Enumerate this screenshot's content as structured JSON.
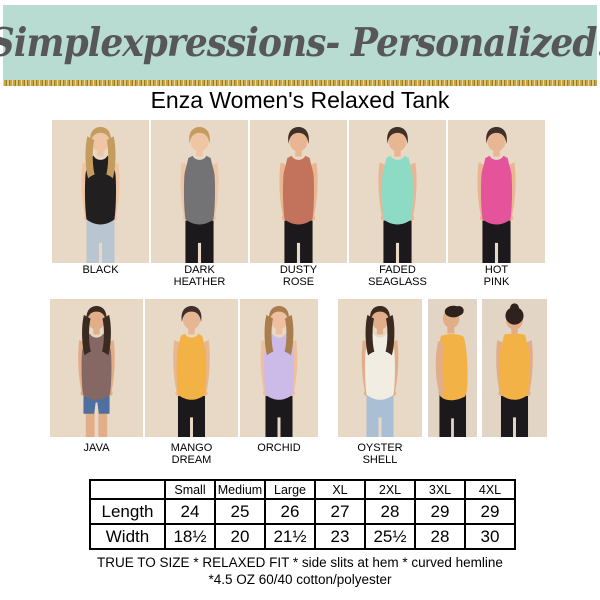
{
  "brand_bar": {
    "text": "Simplexpressions- Personalized!",
    "bg": "#b8dcd1",
    "fg": "#57575a",
    "glitter_gold": "#c9a53f"
  },
  "product_title": "Enza Women's Relaxed Tank",
  "photo_rows": [
    {
      "photos": [
        {
          "label": "BLACK",
          "tank_hex": "#221f20",
          "hair_hex": "#c49c5e",
          "skin_hex": "#f0c5a3",
          "bottom_hex": "#b9c6d1",
          "bottom_type": "pants",
          "hair_style": "long",
          "view": "front",
          "bg_hex": "#e8d9c6"
        },
        {
          "label": "DARK\nHEATHER",
          "tank_hex": "#737376",
          "hair_hex": "#c49c5e",
          "skin_hex": "#f0c5a3",
          "bottom_hex": "#1b191c",
          "bottom_type": "pants",
          "hair_style": "tied",
          "view": "front",
          "bg_hex": "#e8d9c6"
        },
        {
          "label": "DUSTY\nROSE",
          "tank_hex": "#c3735c",
          "hair_hex": "#41302a",
          "skin_hex": "#e9b693",
          "bottom_hex": "#1b191c",
          "bottom_type": "pants",
          "hair_style": "tied",
          "view": "front",
          "bg_hex": "#e8d9c6"
        },
        {
          "label": "FADED\nSEAGLASS",
          "tank_hex": "#8edbc5",
          "hair_hex": "#41302a",
          "skin_hex": "#e9b693",
          "bottom_hex": "#1b191c",
          "bottom_type": "pants",
          "hair_style": "tied",
          "view": "front",
          "bg_hex": "#e8d9c6"
        },
        {
          "label": "HOT\nPINK",
          "tank_hex": "#e5549a",
          "hair_hex": "#41302a",
          "skin_hex": "#e9b693",
          "bottom_hex": "#1b191c",
          "bottom_type": "pants",
          "hair_style": "tied",
          "view": "front",
          "bg_hex": "#e8d9c6"
        }
      ]
    },
    {
      "photos": [
        {
          "label": "JAVA",
          "tank_hex": "#856764",
          "hair_hex": "#3a2a20",
          "skin_hex": "#e2ae89",
          "bottom_hex": "#4e6f9f",
          "bottom_type": "shorts",
          "hair_style": "long",
          "view": "front",
          "bg_hex": "#e8d9c6"
        },
        {
          "label": "MANGO\nDREAM",
          "tank_hex": "#f2b246",
          "hair_hex": "#41302a",
          "skin_hex": "#e9b693",
          "bottom_hex": "#1b191c",
          "bottom_type": "pants",
          "hair_style": "tied",
          "view": "front",
          "bg_hex": "#e8d9c6"
        },
        {
          "label": "ORCHID",
          "tank_hex": "#ccbae8",
          "hair_hex": "#a87e4f",
          "skin_hex": "#eec0a0",
          "bottom_hex": "#1b191c",
          "bottom_type": "pants",
          "hair_style": "long",
          "view": "front",
          "bg_hex": "#e8d9c6"
        },
        {
          "label": "OYSTER\nSHELL",
          "tank_hex": "#f1ede2",
          "hair_hex": "#3a2a20",
          "skin_hex": "#e2ae89",
          "bottom_hex": "#aabfd4",
          "bottom_type": "pants",
          "hair_style": "long",
          "view": "front",
          "bg_hex": "#e8d9c6"
        },
        {
          "label": "",
          "tank_hex": "#f2b246",
          "hair_hex": "#2e221c",
          "skin_hex": "#e2ae89",
          "bottom_hex": "#1b191c",
          "bottom_type": "pants",
          "hair_style": "bun",
          "view": "side",
          "bg_hex": "#e3d5c5"
        },
        {
          "label": "",
          "tank_hex": "#f2b246",
          "hair_hex": "#2e221c",
          "skin_hex": "#e2ae89",
          "bottom_hex": "#1b191c",
          "bottom_type": "pants",
          "hair_style": "bun",
          "view": "back",
          "bg_hex": "#e3d5c5"
        }
      ]
    }
  ],
  "size_table": {
    "corner": "",
    "columns": [
      "Small",
      "Medium",
      "Large",
      "XL",
      "2XL",
      "3XL",
      "4XL"
    ],
    "rows": [
      {
        "label": "Length",
        "values": [
          "24",
          "25",
          "26",
          "27",
          "28",
          "29",
          "29"
        ]
      },
      {
        "label": "Width",
        "values": [
          "18½",
          "20",
          "21½",
          "23",
          "25½",
          "28",
          "30"
        ]
      }
    ]
  },
  "footnotes": [
    "TRUE TO SIZE * RELAXED FIT * side slits at hem * curved hemline",
    "*4.5 OZ 60/40 cotton/polyester"
  ]
}
